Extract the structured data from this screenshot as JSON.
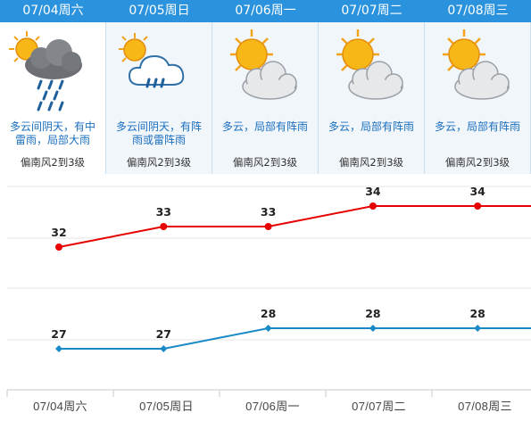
{
  "days": [
    {
      "label": "07/04周六",
      "desc_line1": "多云间阴天，有中",
      "desc_line2": "雷雨，局部大雨",
      "wind": "偏南风2到3级",
      "icon": "thunderstorm-icon"
    },
    {
      "label": "07/05周日",
      "desc_line1": "多云间阴天，有阵",
      "desc_line2": "雨或雷阵雨",
      "wind": "偏南风2到3级",
      "icon": "shower-icon"
    },
    {
      "label": "07/06周一",
      "desc_line1": "多云，局部有阵雨",
      "desc_line2": "",
      "wind": "偏南风2到3级",
      "icon": "partly-cloudy-icon"
    },
    {
      "label": "07/07周二",
      "desc_line1": "多云，局部有阵雨",
      "desc_line2": "",
      "wind": "偏南风2到3级",
      "icon": "partly-cloudy-icon"
    },
    {
      "label": "07/08周三",
      "desc_line1": "多云，局部有阵雨",
      "desc_line2": "",
      "wind": "偏南风2到3级",
      "icon": "partly-cloudy-icon"
    }
  ],
  "colors": {
    "header": "#2b93dd",
    "high_line": "#e60000",
    "low_line": "#1a8ac7"
  },
  "chart_data": {
    "type": "line",
    "categories": [
      "07/04周六",
      "07/05周日",
      "07/06周一",
      "07/07周二",
      "07/08周三"
    ],
    "series": [
      {
        "values": [
          32,
          33,
          33,
          34,
          34
        ]
      },
      {
        "values": [
          27,
          27,
          28,
          28,
          28
        ]
      }
    ],
    "grid": true
  }
}
